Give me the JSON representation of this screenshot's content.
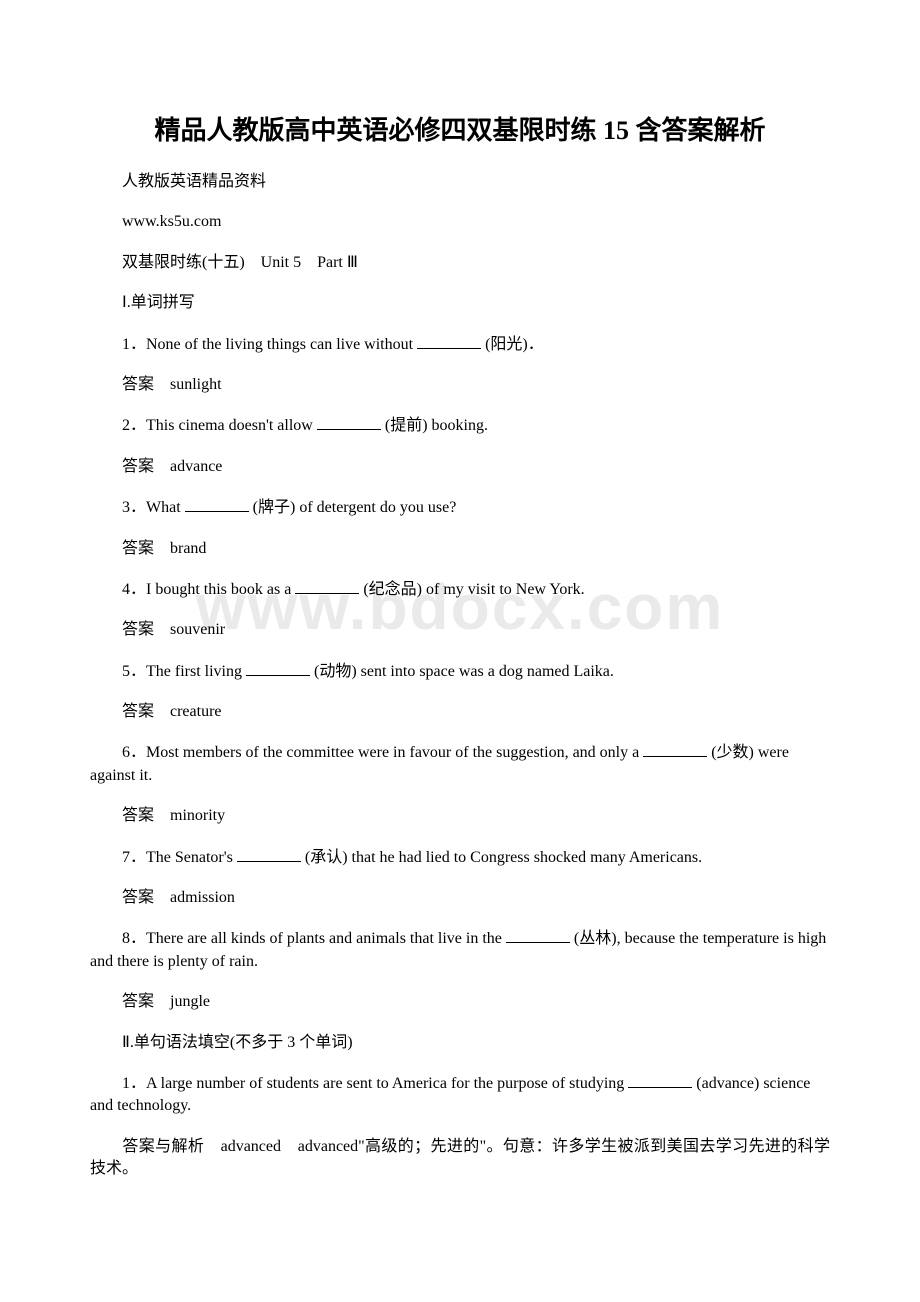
{
  "watermark": "www.bdocx.com",
  "title": "精品人教版高中英语必修四双基限时练 15 含答案解析",
  "lines": {
    "sub1": "人教版英语精品资料",
    "url": "www.ks5u.com",
    "sub2": "双基限时练(十五)　Unit 5　Part Ⅲ",
    "section1": "Ⅰ.单词拼写",
    "q1a": "1．None of the living things can live without ",
    "q1b": " (阳光)．",
    "a1": "答案　sunlight",
    "q2a": "2．This cinema doesn't allow ",
    "q2b": " (提前) booking.",
    "a2": "答案　advance",
    "q3a": "3．What ",
    "q3b": " (牌子) of detergent do you use?",
    "a3": "答案　brand",
    "q4a": "4．I bought this book as a ",
    "q4b": " (纪念品) of my visit to New York.",
    "a4": "答案　souvenir",
    "q5a": "5．The first living ",
    "q5b": " (动物) sent into space was a dog named Laika.",
    "a5": "答案　creature",
    "q6a": "6．Most members of the committee were in favour of the suggestion, and only a ",
    "q6b": " (少数) were against it.",
    "a6": "答案　minority",
    "q7a": "7．The Senator's ",
    "q7b": " (承认) that he had lied to Congress shocked many Americans.",
    "a7": "答案　admission",
    "q8a": "8．There are all kinds of plants and animals that live in the ",
    "q8b": " (丛林), because the temperature is high and there is plenty of rain.",
    "a8": "答案　jungle",
    "section2": "Ⅱ.单句语法填空(不多于 3 个单词)",
    "q21a": "1．A large number of students are sent to America for the purpose of studying ",
    "q21b": " (advance) science and technology.",
    "a21": "答案与解析　advanced　advanced\"高级的；先进的\"。句意：许多学生被派到美国去学习先进的科学技术。"
  }
}
